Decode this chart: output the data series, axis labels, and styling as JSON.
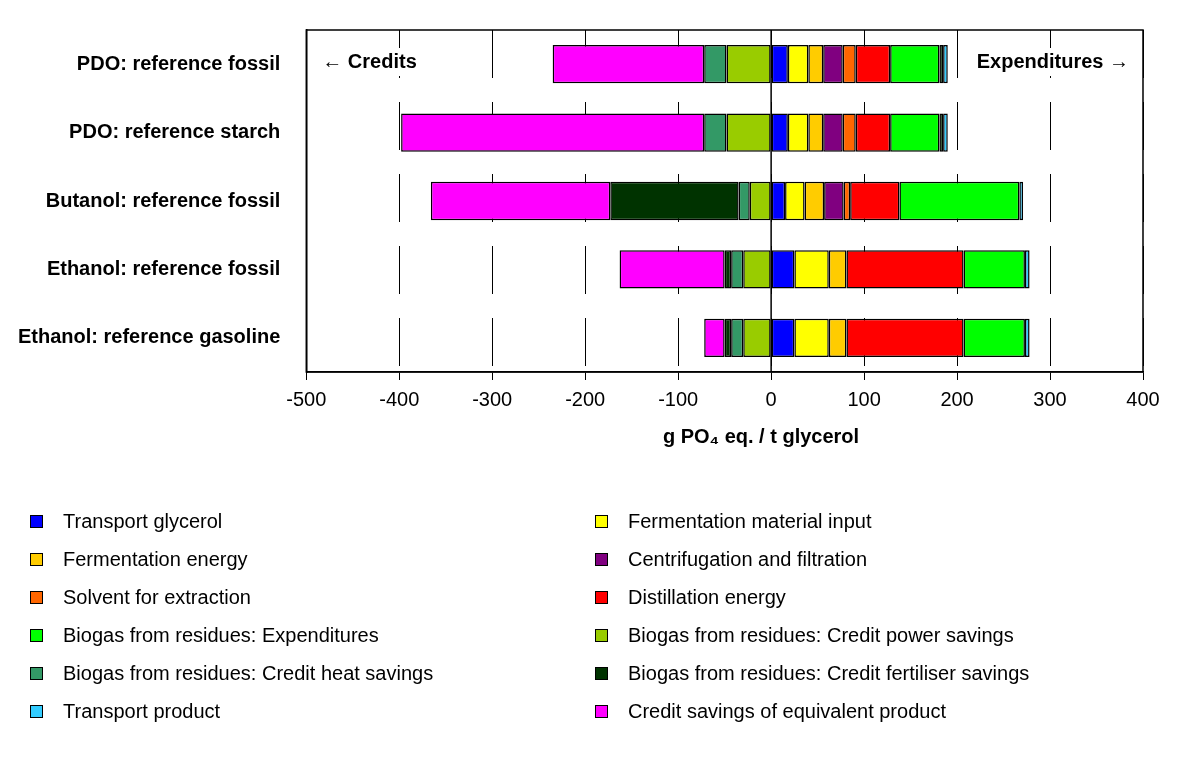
{
  "chart_data": {
    "type": "bar",
    "orientation": "horizontal",
    "stacked": true,
    "xlabel": "g PO₄ eq. / t glycerol",
    "categories": [
      "PDO: reference fossil",
      "PDO: reference starch",
      "Butanol: reference fossil",
      "Ethanol: reference fossil",
      "Ethanol: reference gasoline"
    ],
    "xlim": [
      -500,
      400
    ],
    "xticks": [
      -500,
      -400,
      -300,
      -200,
      -100,
      0,
      100,
      200,
      300,
      400
    ],
    "grid": "x",
    "legend": "bottom",
    "annotations": [
      "← Credits",
      "Expenditures →"
    ],
    "series": [
      {
        "name": "Transport glycerol",
        "color": "#0000ff",
        "values": [
          18,
          18,
          15,
          25,
          25
        ]
      },
      {
        "name": "Fermentation material input",
        "color": "#ffff00",
        "values": [
          22,
          22,
          21,
          37,
          37
        ]
      },
      {
        "name": "Fermentation energy",
        "color": "#ffcc00",
        "values": [
          16,
          16,
          21,
          19,
          19
        ]
      },
      {
        "name": "Centrifugation and filtration",
        "color": "#800080",
        "values": [
          21,
          21,
          21,
          null,
          null
        ]
      },
      {
        "name": "Solvent for extraction",
        "color": "#ff6600",
        "values": [
          14,
          14,
          7,
          null,
          null
        ]
      },
      {
        "name": "Distillation energy",
        "color": "#ff0000",
        "values": [
          37,
          37,
          53,
          126,
          126
        ]
      },
      {
        "name": "Biogas from residues: Expenditures",
        "color": "#00ff00",
        "values": [
          53,
          53,
          129,
          66,
          66
        ]
      },
      {
        "name": "Biogas from residues: Credit power savings",
        "color": "#99cc00",
        "values": [
          -48,
          -48,
          -23,
          -30,
          -30
        ]
      },
      {
        "name": "Biogas from residues: Credit heat savings",
        "color": "#339966",
        "values": [
          -24,
          -24,
          -12,
          -13,
          -13
        ]
      },
      {
        "name": "Biogas from residues: Credit fertiliser savings",
        "color": "#003300",
        "values": [
          4,
          4,
          -138,
          -7,
          -7
        ]
      },
      {
        "name": "Transport product",
        "color": "#33ccff",
        "values": [
          5,
          5,
          4,
          5,
          5
        ]
      },
      {
        "name": "Credit savings of equivalent product",
        "color": "#ff00ff",
        "values": [
          -163,
          -326,
          -193,
          -113,
          -22
        ]
      }
    ]
  }
}
